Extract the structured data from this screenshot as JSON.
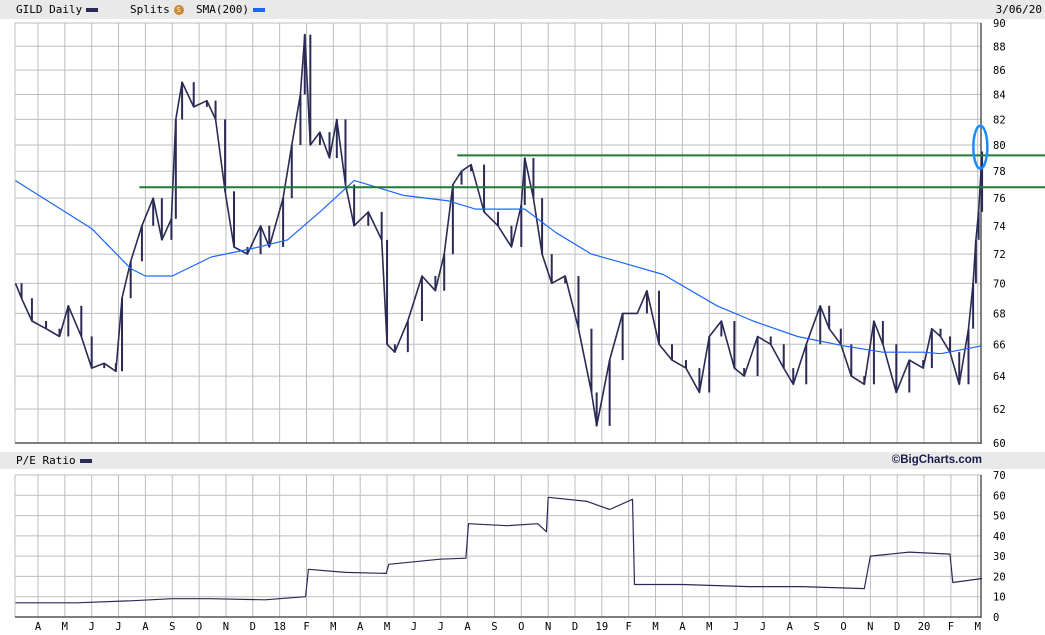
{
  "header": {
    "symbol_label": "GILD Daily",
    "splits_label": "Splits",
    "splits_icon": "splits-coin-icon",
    "splits_glyph": "S",
    "sma_label": "SMA(200)",
    "date": "3/06/20"
  },
  "pe_header": {
    "label": "P/E Ratio",
    "brand": "©BigCharts.com"
  },
  "colors": {
    "price": "#2b2a55",
    "sma": "#1a66ff",
    "support": "#1e7a34",
    "highlight": "#1a8cff",
    "grid": "#bdbdbd"
  },
  "chart_data": [
    {
      "type": "line",
      "title": "GILD Daily",
      "yscale": "log",
      "ylim": [
        60,
        90
      ],
      "yticks": [
        60,
        62,
        64,
        66,
        68,
        70,
        72,
        74,
        76,
        78,
        80,
        82,
        84,
        86,
        88,
        90
      ],
      "xlim": [
        "2017-03-06",
        "2020-03-06"
      ],
      "grid": true,
      "series": [
        {
          "name": "GILD Daily",
          "color": "#2b2a55",
          "points": [
            [
              "2017-03-06",
              70
            ],
            [
              "2017-03-13",
              69
            ],
            [
              "2017-03-25",
              67.5
            ],
            [
              "2017-04-10",
              67
            ],
            [
              "2017-04-25",
              66.5
            ],
            [
              "2017-05-05",
              68.5
            ],
            [
              "2017-05-20",
              66.5
            ],
            [
              "2017-06-01",
              64.5
            ],
            [
              "2017-06-15",
              64.8
            ],
            [
              "2017-06-28",
              64.3
            ],
            [
              "2017-07-05",
              69
            ],
            [
              "2017-07-15",
              71.5
            ],
            [
              "2017-07-28",
              74
            ],
            [
              "2017-08-10",
              76
            ],
            [
              "2017-08-20",
              73
            ],
            [
              "2017-08-31",
              74.5
            ],
            [
              "2017-09-05",
              82
            ],
            [
              "2017-09-12",
              85
            ],
            [
              "2017-09-25",
              83
            ],
            [
              "2017-10-10",
              83.5
            ],
            [
              "2017-10-20",
              82
            ],
            [
              "2017-10-31",
              76.5
            ],
            [
              "2017-11-10",
              72.5
            ],
            [
              "2017-11-25",
              72
            ],
            [
              "2017-12-10",
              74
            ],
            [
              "2017-12-20",
              72.5
            ],
            [
              "2018-01-05",
              76
            ],
            [
              "2018-01-15",
              80
            ],
            [
              "2018-01-25",
              84
            ],
            [
              "2018-01-30",
              89
            ],
            [
              "2018-02-05",
              80
            ],
            [
              "2018-02-15",
              81
            ],
            [
              "2018-02-25",
              79
            ],
            [
              "2018-03-05",
              82
            ],
            [
              "2018-03-15",
              77
            ],
            [
              "2018-03-25",
              74
            ],
            [
              "2018-04-10",
              75
            ],
            [
              "2018-04-25",
              73
            ],
            [
              "2018-05-01",
              66
            ],
            [
              "2018-05-10",
              65.5
            ],
            [
              "2018-05-25",
              67.5
            ],
            [
              "2018-06-10",
              70.5
            ],
            [
              "2018-06-25",
              69.5
            ],
            [
              "2018-07-05",
              72
            ],
            [
              "2018-07-15",
              77
            ],
            [
              "2018-07-25",
              78
            ],
            [
              "2018-08-05",
              78.5
            ],
            [
              "2018-08-20",
              75
            ],
            [
              "2018-09-05",
              74
            ],
            [
              "2018-09-20",
              72.5
            ],
            [
              "2018-10-01",
              75.5
            ],
            [
              "2018-10-05",
              79
            ],
            [
              "2018-10-15",
              76
            ],
            [
              "2018-10-25",
              72
            ],
            [
              "2018-11-05",
              70
            ],
            [
              "2018-11-20",
              70.5
            ],
            [
              "2018-12-05",
              67
            ],
            [
              "2018-12-20",
              63
            ],
            [
              "2018-12-26",
              61
            ],
            [
              "2019-01-10",
              65
            ],
            [
              "2019-01-25",
              68
            ],
            [
              "2019-02-10",
              68
            ],
            [
              "2019-02-20",
              69.5
            ],
            [
              "2019-03-05",
              66
            ],
            [
              "2019-03-20",
              65
            ],
            [
              "2019-04-05",
              64.5
            ],
            [
              "2019-04-20",
              63
            ],
            [
              "2019-05-01",
              66.5
            ],
            [
              "2019-05-15",
              67.5
            ],
            [
              "2019-05-30",
              64.5
            ],
            [
              "2019-06-10",
              64
            ],
            [
              "2019-06-25",
              66.5
            ],
            [
              "2019-07-10",
              66
            ],
            [
              "2019-07-25",
              64.5
            ],
            [
              "2019-08-05",
              63.5
            ],
            [
              "2019-08-20",
              66
            ],
            [
              "2019-09-05",
              68.5
            ],
            [
              "2019-09-15",
              67
            ],
            [
              "2019-09-28",
              66
            ],
            [
              "2019-10-10",
              64
            ],
            [
              "2019-10-25",
              63.5
            ],
            [
              "2019-11-05",
              67.5
            ],
            [
              "2019-11-15",
              66
            ],
            [
              "2019-11-30",
              63
            ],
            [
              "2019-12-15",
              65
            ],
            [
              "2019-12-31",
              64.5
            ],
            [
              "2020-01-10",
              67
            ],
            [
              "2020-01-20",
              66.5
            ],
            [
              "2020-01-31",
              65.5
            ],
            [
              "2020-02-10",
              63.5
            ],
            [
              "2020-02-20",
              67
            ],
            [
              "2020-02-25",
              70
            ],
            [
              "2020-02-28",
              73
            ],
            [
              "2020-03-02",
              75
            ],
            [
              "2020-03-06",
              79.5
            ]
          ]
        },
        {
          "name": "SMA(200)",
          "color": "#1a66ff",
          "points": [
            [
              "2017-03-06",
              77.3
            ],
            [
              "2017-06-01",
              73.8
            ],
            [
              "2017-07-15",
              71
            ],
            [
              "2017-08-01",
              70.5
            ],
            [
              "2017-09-01",
              70.5
            ],
            [
              "2017-10-15",
              71.8
            ],
            [
              "2017-12-01",
              72.4
            ],
            [
              "2018-01-10",
              73
            ],
            [
              "2018-02-15",
              75
            ],
            [
              "2018-03-25",
              77.3
            ],
            [
              "2018-04-05",
              77.1
            ],
            [
              "2018-05-20",
              76.2
            ],
            [
              "2018-07-10",
              75.8
            ],
            [
              "2018-08-10",
              75.2
            ],
            [
              "2018-10-05",
              75.2
            ],
            [
              "2018-11-10",
              73.5
            ],
            [
              "2018-12-20",
              72
            ],
            [
              "2019-01-25",
              71.4
            ],
            [
              "2019-03-10",
              70.6
            ],
            [
              "2019-05-10",
              68.5
            ],
            [
              "2019-06-20",
              67.5
            ],
            [
              "2019-08-10",
              66.5
            ],
            [
              "2019-10-01",
              65.9
            ],
            [
              "2019-11-15",
              65.5
            ],
            [
              "2019-12-31",
              65.5
            ],
            [
              "2020-01-20",
              65.4
            ],
            [
              "2020-03-06",
              65.9
            ]
          ]
        }
      ],
      "annotations": [
        {
          "type": "hline",
          "value": 76.8,
          "from": "2017-07-25",
          "color": "#1e7a34"
        },
        {
          "type": "hline",
          "value": 79.2,
          "from": "2018-07-20",
          "color": "#1e7a34"
        },
        {
          "type": "ellipse",
          "date": "2020-03-04",
          "value_range": [
            78.2,
            81.5
          ],
          "color": "#1a8cff"
        }
      ]
    },
    {
      "type": "line",
      "title": "P/E Ratio",
      "ylim": [
        0,
        70
      ],
      "yticks": [
        0,
        10,
        20,
        30,
        40,
        50,
        60,
        70
      ],
      "grid": true,
      "xticks": [
        "A",
        "M",
        "J",
        "J",
        "A",
        "S",
        "O",
        "N",
        "D",
        "18",
        "F",
        "M",
        "A",
        "M",
        "J",
        "J",
        "A",
        "S",
        "O",
        "N",
        "D",
        "19",
        "F",
        "M",
        "A",
        "M",
        "J",
        "J",
        "A",
        "S",
        "O",
        "N",
        "D",
        "20",
        "F",
        "M"
      ],
      "series": [
        {
          "name": "P/E Ratio",
          "color": "#2b2a55",
          "points": [
            [
              "2017-03-06",
              7
            ],
            [
              "2017-05-15",
              7
            ],
            [
              "2017-07-15",
              8
            ],
            [
              "2017-09-01",
              9
            ],
            [
              "2017-10-15",
              9
            ],
            [
              "2017-12-15",
              8.5
            ],
            [
              "2018-01-31",
              10
            ],
            [
              "2018-02-03",
              23.5
            ],
            [
              "2018-03-15",
              22
            ],
            [
              "2018-04-30",
              21.5
            ],
            [
              "2018-05-03",
              26
            ],
            [
              "2018-06-30",
              28.5
            ],
            [
              "2018-07-30",
              29
            ],
            [
              "2018-08-02",
              46
            ],
            [
              "2018-09-15",
              45
            ],
            [
              "2018-10-20",
              46
            ],
            [
              "2018-10-30",
              42
            ],
            [
              "2018-11-01",
              59
            ],
            [
              "2018-12-15",
              57
            ],
            [
              "2019-01-10",
              53
            ],
            [
              "2019-02-05",
              58
            ],
            [
              "2019-02-07",
              16
            ],
            [
              "2019-04-01",
              16
            ],
            [
              "2019-06-15",
              15
            ],
            [
              "2019-08-15",
              15
            ],
            [
              "2019-10-25",
              14
            ],
            [
              "2019-11-01",
              30
            ],
            [
              "2019-12-15",
              32
            ],
            [
              "2020-01-31",
              31
            ],
            [
              "2020-02-03",
              17
            ],
            [
              "2020-03-06",
              19
            ]
          ]
        }
      ]
    }
  ]
}
